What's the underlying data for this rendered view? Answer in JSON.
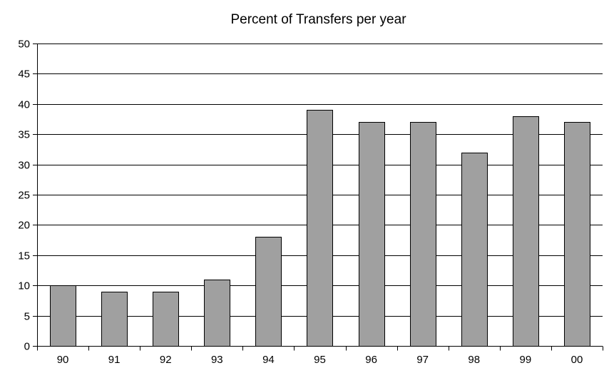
{
  "chart_data": {
    "type": "bar",
    "title": "Percent of Transfers per year",
    "xlabel": "",
    "ylabel": "",
    "categories": [
      "90",
      "91",
      "92",
      "93",
      "94",
      "95",
      "96",
      "97",
      "98",
      "99",
      "00"
    ],
    "values": [
      10,
      9,
      9,
      11,
      18,
      39,
      37,
      37,
      32,
      38,
      37
    ],
    "ylim": [
      0,
      50
    ],
    "yticks": [
      0,
      5,
      10,
      15,
      20,
      25,
      30,
      35,
      40,
      45,
      50
    ],
    "grid": true,
    "legend": "none",
    "colors": {
      "bar_fill": "#a0a0a0",
      "bar_stroke": "#000000",
      "grid": "#000000",
      "axis": "#000000"
    }
  }
}
